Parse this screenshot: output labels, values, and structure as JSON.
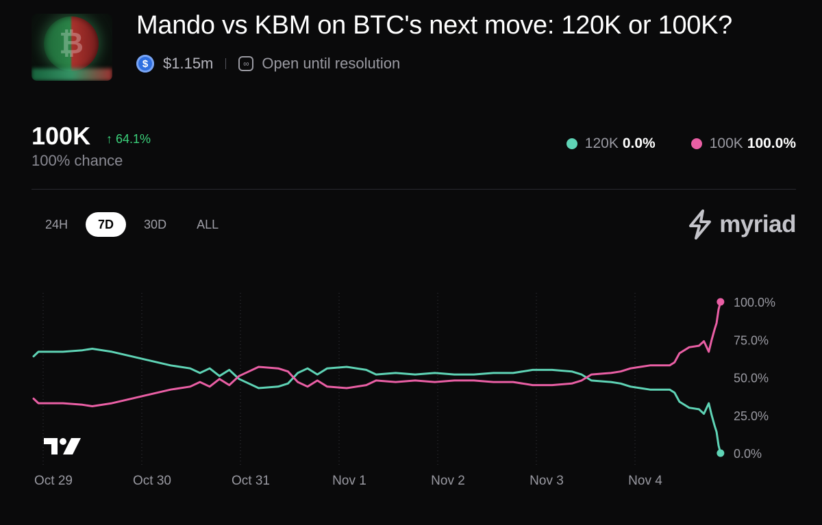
{
  "market": {
    "title": "Mando vs KBM on BTC's next move: 120K or 100K?",
    "thumbnail_symbol": "₿",
    "volume_icon": "usdc-icon",
    "volume": "$1.15m",
    "status_icon": "infinity-clock-icon",
    "status": "Open until resolution"
  },
  "summary": {
    "leading": "100K",
    "change": "↑ 64.1%",
    "chance": "100% chance"
  },
  "legend": [
    {
      "name": "120K",
      "value": "0.0%",
      "color": "#5fd4b6"
    },
    {
      "name": "100K",
      "value": "100.0%",
      "color": "#ea5fa5"
    }
  ],
  "ranges": [
    "24H",
    "7D",
    "30D",
    "ALL"
  ],
  "active_range": "7D",
  "brand": {
    "name": "myriad",
    "icon": "lightning-icon"
  },
  "chart_data": {
    "type": "line",
    "x_ticks": [
      "Oct 29",
      "Oct 30",
      "Oct 31",
      "Nov 1",
      "Nov 2",
      "Nov 3",
      "Nov 4"
    ],
    "y_ticks": [
      "100.0%",
      "75.0%",
      "50.0%",
      "25.0%",
      "0.0%"
    ],
    "ylim": [
      0,
      100
    ],
    "xlim": [
      0,
      7.0
    ],
    "grid": "vertical dotted",
    "series": [
      {
        "name": "120K",
        "color": "#5fd4b6",
        "points": [
          [
            0,
            64
          ],
          [
            0.05,
            67
          ],
          [
            0.3,
            67
          ],
          [
            0.5,
            68
          ],
          [
            0.6,
            69
          ],
          [
            0.8,
            67
          ],
          [
            1.0,
            64
          ],
          [
            1.2,
            61
          ],
          [
            1.4,
            58
          ],
          [
            1.6,
            56
          ],
          [
            1.7,
            53
          ],
          [
            1.8,
            56
          ],
          [
            1.9,
            51
          ],
          [
            2.0,
            55
          ],
          [
            2.1,
            49
          ],
          [
            2.2,
            46
          ],
          [
            2.3,
            43
          ],
          [
            2.5,
            44
          ],
          [
            2.6,
            46
          ],
          [
            2.7,
            53
          ],
          [
            2.8,
            56
          ],
          [
            2.9,
            52
          ],
          [
            3.0,
            56
          ],
          [
            3.2,
            57
          ],
          [
            3.4,
            55
          ],
          [
            3.5,
            52
          ],
          [
            3.7,
            53
          ],
          [
            3.9,
            52
          ],
          [
            4.1,
            53
          ],
          [
            4.3,
            52
          ],
          [
            4.5,
            52
          ],
          [
            4.7,
            53
          ],
          [
            4.9,
            53
          ],
          [
            5.1,
            55
          ],
          [
            5.3,
            55
          ],
          [
            5.5,
            54
          ],
          [
            5.6,
            52
          ],
          [
            5.7,
            48
          ],
          [
            5.9,
            47
          ],
          [
            6.0,
            46
          ],
          [
            6.1,
            44
          ],
          [
            6.2,
            43
          ],
          [
            6.3,
            42
          ],
          [
            6.5,
            42
          ],
          [
            6.55,
            40
          ],
          [
            6.6,
            34
          ],
          [
            6.7,
            30
          ],
          [
            6.8,
            29
          ],
          [
            6.85,
            26
          ],
          [
            6.9,
            33
          ],
          [
            6.93,
            25
          ],
          [
            6.96,
            18
          ],
          [
            6.98,
            14
          ],
          [
            7.0,
            5
          ],
          [
            7.02,
            0
          ]
        ]
      },
      {
        "name": "100K",
        "color": "#ea5fa5",
        "points": [
          [
            0,
            36
          ],
          [
            0.05,
            33
          ],
          [
            0.3,
            33
          ],
          [
            0.5,
            32
          ],
          [
            0.6,
            31
          ],
          [
            0.8,
            33
          ],
          [
            1.0,
            36
          ],
          [
            1.2,
            39
          ],
          [
            1.4,
            42
          ],
          [
            1.6,
            44
          ],
          [
            1.7,
            47
          ],
          [
            1.8,
            44
          ],
          [
            1.9,
            49
          ],
          [
            2.0,
            45
          ],
          [
            2.1,
            51
          ],
          [
            2.2,
            54
          ],
          [
            2.3,
            57
          ],
          [
            2.5,
            56
          ],
          [
            2.6,
            54
          ],
          [
            2.7,
            47
          ],
          [
            2.8,
            44
          ],
          [
            2.9,
            48
          ],
          [
            3.0,
            44
          ],
          [
            3.2,
            43
          ],
          [
            3.4,
            45
          ],
          [
            3.5,
            48
          ],
          [
            3.7,
            47
          ],
          [
            3.9,
            48
          ],
          [
            4.1,
            47
          ],
          [
            4.3,
            48
          ],
          [
            4.5,
            48
          ],
          [
            4.7,
            47
          ],
          [
            4.9,
            47
          ],
          [
            5.1,
            45
          ],
          [
            5.3,
            45
          ],
          [
            5.5,
            46
          ],
          [
            5.6,
            48
          ],
          [
            5.7,
            52
          ],
          [
            5.9,
            53
          ],
          [
            6.0,
            54
          ],
          [
            6.1,
            56
          ],
          [
            6.2,
            57
          ],
          [
            6.3,
            58
          ],
          [
            6.5,
            58
          ],
          [
            6.55,
            60
          ],
          [
            6.6,
            66
          ],
          [
            6.7,
            70
          ],
          [
            6.8,
            71
          ],
          [
            6.85,
            74
          ],
          [
            6.9,
            67
          ],
          [
            6.93,
            75
          ],
          [
            6.96,
            82
          ],
          [
            6.98,
            86
          ],
          [
            7.0,
            95
          ],
          [
            7.02,
            100
          ]
        ]
      }
    ]
  }
}
